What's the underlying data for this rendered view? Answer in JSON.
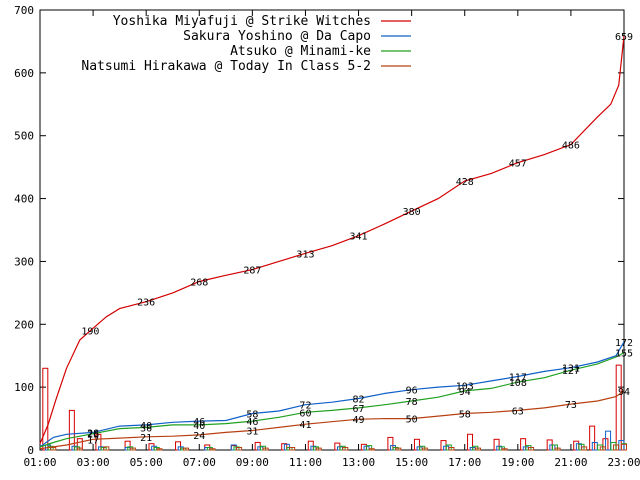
{
  "chart_data": {
    "type": "line",
    "x_labels": [
      "01:00",
      "03:00",
      "05:00",
      "07:00",
      "09:00",
      "11:00",
      "13:00",
      "15:00",
      "17:00",
      "19:00",
      "21:00",
      "23:00"
    ],
    "y_ticks": [
      0,
      100,
      200,
      300,
      400,
      500,
      600,
      700
    ],
    "ylim": [
      0,
      700
    ],
    "xlim": [
      1,
      23
    ],
    "series": [
      {
        "name": "Yoshika Miyafuji @ Strike Witches",
        "color": "#d40000",
        "points": [
          [
            1,
            10
          ],
          [
            1.3,
            40
          ],
          [
            1.6,
            80
          ],
          [
            2,
            130
          ],
          [
            2.5,
            175
          ],
          [
            2.9,
            190
          ],
          [
            3.5,
            212
          ],
          [
            4,
            225
          ],
          [
            5,
            236
          ],
          [
            6,
            250
          ],
          [
            7,
            268
          ],
          [
            8,
            278
          ],
          [
            9,
            287
          ],
          [
            10,
            300
          ],
          [
            11,
            313
          ],
          [
            12,
            325
          ],
          [
            13,
            341
          ],
          [
            14,
            360
          ],
          [
            15,
            380
          ],
          [
            16,
            400
          ],
          [
            17,
            428
          ],
          [
            18,
            440
          ],
          [
            19,
            457
          ],
          [
            20,
            470
          ],
          [
            21,
            486
          ],
          [
            22,
            530
          ],
          [
            22.5,
            550
          ],
          [
            22.8,
            580
          ],
          [
            23,
            659
          ]
        ],
        "labels": [
          [
            2.9,
            190
          ],
          [
            5,
            236
          ],
          [
            7,
            268
          ],
          [
            9,
            287
          ],
          [
            11,
            313
          ],
          [
            13,
            341
          ],
          [
            15,
            380
          ],
          [
            17,
            428
          ],
          [
            19,
            457
          ],
          [
            21,
            486
          ],
          [
            23,
            659
          ]
        ],
        "bars": [
          [
            1.2,
            130
          ],
          [
            2.2,
            63
          ],
          [
            2.5,
            18
          ],
          [
            3.2,
            25
          ],
          [
            4.3,
            14
          ],
          [
            5.2,
            10
          ],
          [
            6.2,
            13
          ],
          [
            7.3,
            8
          ],
          [
            8.3,
            7
          ],
          [
            9.2,
            12
          ],
          [
            10.2,
            10
          ],
          [
            11.2,
            14
          ],
          [
            12.2,
            11
          ],
          [
            13.2,
            9
          ],
          [
            14.2,
            20
          ],
          [
            15.2,
            17
          ],
          [
            16.2,
            15
          ],
          [
            17.2,
            25
          ],
          [
            18.2,
            17
          ],
          [
            19.2,
            18
          ],
          [
            20.2,
            16
          ],
          [
            21.2,
            14
          ],
          [
            21.8,
            38
          ],
          [
            22.3,
            18
          ],
          [
            22.8,
            135
          ]
        ]
      },
      {
        "name": "Sakura Yoshino @ Da Capo",
        "color": "#1060c8",
        "points": [
          [
            1,
            5
          ],
          [
            1.5,
            20
          ],
          [
            2,
            25
          ],
          [
            3,
            28
          ],
          [
            4,
            38
          ],
          [
            5,
            40
          ],
          [
            6,
            44
          ],
          [
            7,
            46
          ],
          [
            8,
            47
          ],
          [
            9,
            58
          ],
          [
            10,
            62
          ],
          [
            11,
            72
          ],
          [
            12,
            76
          ],
          [
            13,
            82
          ],
          [
            14,
            90
          ],
          [
            15,
            96
          ],
          [
            16,
            100
          ],
          [
            17,
            103
          ],
          [
            18,
            110
          ],
          [
            19,
            117
          ],
          [
            20,
            125
          ],
          [
            21,
            131
          ],
          [
            22,
            140
          ],
          [
            22.7,
            150
          ],
          [
            23,
            172
          ]
        ],
        "labels": [
          [
            3,
            28
          ],
          [
            5,
            40
          ],
          [
            7,
            46
          ],
          [
            9,
            58
          ],
          [
            11,
            72
          ],
          [
            13,
            82
          ],
          [
            15,
            96
          ],
          [
            17,
            103
          ],
          [
            19,
            117
          ],
          [
            21,
            131
          ],
          [
            23,
            172
          ]
        ],
        "bars": [
          [
            1.3,
            8
          ],
          [
            2.3,
            6
          ],
          [
            3.3,
            5
          ],
          [
            4.3,
            4
          ],
          [
            5.3,
            6
          ],
          [
            6.3,
            5
          ],
          [
            7.3,
            4
          ],
          [
            8.3,
            8
          ],
          [
            9.3,
            5
          ],
          [
            10.3,
            9
          ],
          [
            11.3,
            6
          ],
          [
            12.3,
            5
          ],
          [
            13.3,
            6
          ],
          [
            14.3,
            7
          ],
          [
            15.3,
            5
          ],
          [
            16.3,
            6
          ],
          [
            17.3,
            4
          ],
          [
            18.3,
            6
          ],
          [
            19.3,
            5
          ],
          [
            20.3,
            8
          ],
          [
            21.3,
            10
          ],
          [
            21.9,
            12
          ],
          [
            22.4,
            30
          ],
          [
            22.9,
            15
          ]
        ]
      },
      {
        "name": "Atsuko @ Minami-ke",
        "color": "#20a020",
        "points": [
          [
            1,
            5
          ],
          [
            1.5,
            12
          ],
          [
            2,
            18
          ],
          [
            3,
            26
          ],
          [
            4,
            34
          ],
          [
            5,
            36
          ],
          [
            6,
            40
          ],
          [
            7,
            40
          ],
          [
            8,
            42
          ],
          [
            9,
            46
          ],
          [
            10,
            52
          ],
          [
            11,
            60
          ],
          [
            12,
            63
          ],
          [
            13,
            67
          ],
          [
            14,
            72
          ],
          [
            15,
            78
          ],
          [
            16,
            84
          ],
          [
            17,
            94
          ],
          [
            18,
            98
          ],
          [
            19,
            108
          ],
          [
            20,
            115
          ],
          [
            21,
            127
          ],
          [
            22,
            137
          ],
          [
            22.7,
            148
          ],
          [
            23,
            155
          ]
        ],
        "labels": [
          [
            3,
            26
          ],
          [
            5,
            36
          ],
          [
            7,
            40
          ],
          [
            9,
            46
          ],
          [
            11,
            60
          ],
          [
            13,
            67
          ],
          [
            15,
            78
          ],
          [
            17,
            94
          ],
          [
            19,
            108
          ],
          [
            21,
            127
          ],
          [
            23,
            155
          ]
        ],
        "bars": [
          [
            1.4,
            6
          ],
          [
            2.4,
            5
          ],
          [
            3.4,
            4
          ],
          [
            4.4,
            5
          ],
          [
            5.4,
            4
          ],
          [
            6.4,
            3
          ],
          [
            7.4,
            4
          ],
          [
            8.4,
            5
          ],
          [
            9.4,
            6
          ],
          [
            10.4,
            4
          ],
          [
            11.4,
            5
          ],
          [
            12.4,
            6
          ],
          [
            13.4,
            7
          ],
          [
            14.4,
            4
          ],
          [
            15.4,
            6
          ],
          [
            16.4,
            8
          ],
          [
            17.4,
            6
          ],
          [
            18.4,
            5
          ],
          [
            19.4,
            7
          ],
          [
            20.4,
            8
          ],
          [
            21.4,
            9
          ],
          [
            22.1,
            8
          ],
          [
            22.6,
            12
          ],
          [
            23,
            10
          ]
        ]
      },
      {
        "name": "Natsumi Hirakawa @ Today In Class 5-2",
        "color": "#b84010",
        "points": [
          [
            1,
            2
          ],
          [
            1.5,
            5
          ],
          [
            2,
            8
          ],
          [
            3,
            17
          ],
          [
            4,
            19
          ],
          [
            5,
            21
          ],
          [
            6,
            22
          ],
          [
            7,
            24
          ],
          [
            8,
            28
          ],
          [
            9,
            31
          ],
          [
            10,
            36
          ],
          [
            11,
            41
          ],
          [
            12,
            45
          ],
          [
            13,
            49
          ],
          [
            14,
            50
          ],
          [
            15,
            50
          ],
          [
            16,
            54
          ],
          [
            17,
            58
          ],
          [
            18,
            60
          ],
          [
            19,
            63
          ],
          [
            20,
            67
          ],
          [
            21,
            73
          ],
          [
            22,
            78
          ],
          [
            22.7,
            85
          ],
          [
            23,
            94
          ]
        ],
        "labels": [
          [
            3,
            17
          ],
          [
            5,
            21
          ],
          [
            7,
            24
          ],
          [
            9,
            31
          ],
          [
            11,
            41
          ],
          [
            13,
            49
          ],
          [
            15,
            50
          ],
          [
            17,
            58
          ],
          [
            19,
            63
          ],
          [
            21,
            73
          ],
          [
            23,
            94
          ]
        ],
        "bars": [
          [
            1.5,
            4
          ],
          [
            2.5,
            3
          ],
          [
            3.5,
            5
          ],
          [
            4.5,
            3
          ],
          [
            5.5,
            2
          ],
          [
            6.5,
            3
          ],
          [
            7.5,
            2
          ],
          [
            8.5,
            4
          ],
          [
            9.5,
            3
          ],
          [
            10.5,
            4
          ],
          [
            11.5,
            3
          ],
          [
            12.5,
            4
          ],
          [
            13.5,
            2
          ],
          [
            14.5,
            3
          ],
          [
            15.5,
            3
          ],
          [
            16.5,
            4
          ],
          [
            17.5,
            3
          ],
          [
            18.5,
            2
          ],
          [
            19.5,
            4
          ],
          [
            20.5,
            3
          ],
          [
            21.5,
            5
          ],
          [
            22.2,
            5
          ],
          [
            22.7,
            8
          ],
          [
            23,
            9
          ]
        ]
      }
    ],
    "grid": false,
    "legend_position": "top-left"
  }
}
